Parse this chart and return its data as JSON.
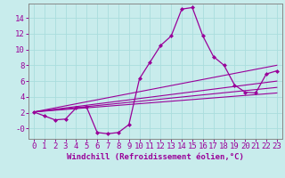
{
  "xlabel": "Windchill (Refroidissement éolien,°C)",
  "bg_color": "#c8ecec",
  "line_color": "#990099",
  "grid_color": "#aadddd",
  "axis_color": "#777777",
  "xlim": [
    -0.5,
    23.5
  ],
  "ylim": [
    -1.3,
    15.8
  ],
  "xticks": [
    0,
    1,
    2,
    3,
    4,
    5,
    6,
    7,
    8,
    9,
    10,
    11,
    12,
    13,
    14,
    15,
    16,
    17,
    18,
    19,
    20,
    21,
    22,
    23
  ],
  "yticks": [
    0,
    2,
    4,
    6,
    8,
    10,
    12,
    14
  ],
  "ytick_labels": [
    "-0",
    "2",
    "4",
    "6",
    "8",
    "10",
    "12",
    "14"
  ],
  "curve1_x": [
    0,
    1,
    2,
    3,
    4,
    5,
    6,
    7,
    8,
    9,
    10,
    11,
    12,
    13,
    14,
    15,
    16,
    17,
    18,
    19,
    20,
    21,
    22,
    23
  ],
  "curve1_y": [
    2.1,
    1.6,
    1.1,
    1.2,
    2.6,
    2.7,
    -0.5,
    -0.65,
    -0.5,
    0.5,
    6.3,
    8.4,
    10.5,
    11.7,
    15.1,
    15.3,
    11.7,
    9.1,
    8.0,
    5.5,
    4.6,
    4.5,
    6.9,
    7.3
  ],
  "line1_x": [
    0,
    23
  ],
  "line1_y": [
    2.1,
    4.5
  ],
  "line2_x": [
    0,
    23
  ],
  "line2_y": [
    2.1,
    5.2
  ],
  "line3_x": [
    0,
    23
  ],
  "line3_y": [
    2.1,
    6.0
  ],
  "line4_x": [
    0,
    23
  ],
  "line4_y": [
    2.1,
    8.0
  ],
  "font_color": "#990099",
  "tick_fontsize": 6.5,
  "label_fontsize": 6.5
}
